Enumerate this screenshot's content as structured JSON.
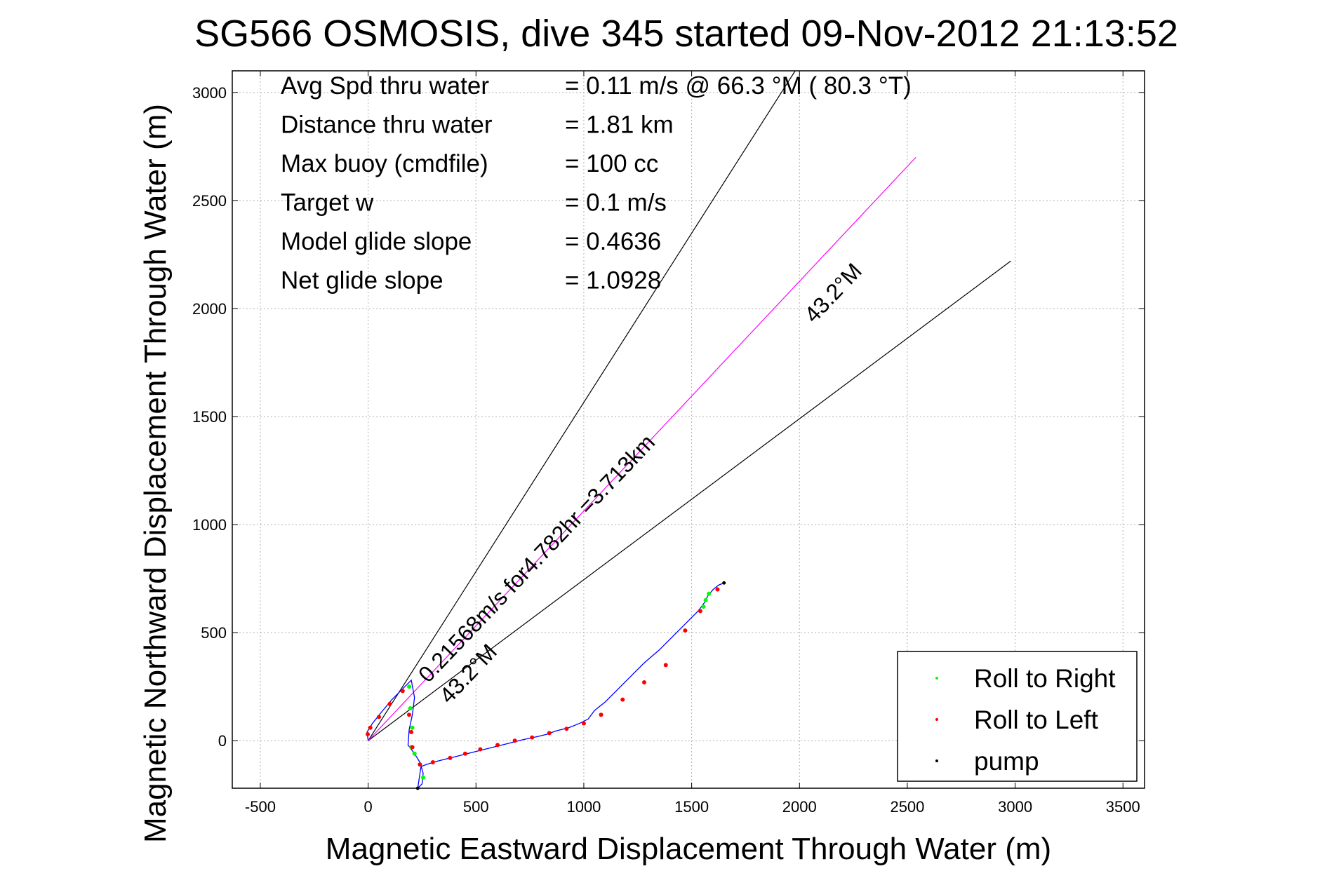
{
  "chart_data": {
    "type": "line",
    "title": "SG566 OSMOSIS, dive 345 started 09-Nov-2012 21:13:52",
    "xlabel": "Magnetic Eastward Displacement Through Water (m)",
    "ylabel": "Magnetic Northward Displacement Through Water (m)",
    "xlim": [
      -630,
      3600
    ],
    "ylim": [
      -220,
      3100
    ],
    "xticks": [
      -500,
      0,
      500,
      1000,
      1500,
      2000,
      2500,
      3000,
      3500
    ],
    "yticks": [
      0,
      500,
      1000,
      1500,
      2000,
      2500,
      3000
    ],
    "grid": true,
    "info_lines": [
      {
        "label": "Avg Spd thru water",
        "value": "=  0.11 m/s @  66.3 °M ( 80.3 °T)"
      },
      {
        "label": "Distance thru water",
        "value": "=  1.81 km"
      },
      {
        "label": "Max buoy (cmdfile)",
        "value": "= 100 cc"
      },
      {
        "label": "Target w",
        "value": "= 0.1 m/s"
      },
      {
        "label": "Model glide slope",
        "value": "= 0.4636"
      },
      {
        "label": "Net glide slope",
        "value": "= 1.0928"
      }
    ],
    "annotations": {
      "current_text": "0.21568m/s for4.782hr =3.713km",
      "heading_text_near": "43.2°M",
      "heading_text_far": "43.2°M"
    },
    "guide_lines": [
      {
        "name": "cone-left",
        "x": [
          0,
          1980
        ],
        "y": [
          0,
          3100
        ],
        "color": "#000000"
      },
      {
        "name": "cone-right",
        "x": [
          0,
          2980
        ],
        "y": [
          0,
          2220
        ],
        "color": "#000000"
      },
      {
        "name": "current-vector",
        "x": [
          0,
          2540
        ],
        "y": [
          0,
          2700
        ],
        "color": "#ff00ff"
      }
    ],
    "series": [
      {
        "name": "track",
        "color": "#0000ff",
        "x": [
          0,
          -5,
          20,
          60,
          110,
          170,
          200,
          215,
          205,
          190,
          185,
          200,
          215,
          240,
          255,
          250,
          230,
          245,
          270,
          320,
          400,
          480,
          560,
          640,
          720,
          790,
          830,
          870,
          930,
          980,
          1020,
          1050,
          1100,
          1150,
          1210,
          1280,
          1350,
          1410,
          1470,
          1530,
          1560,
          1575,
          1600,
          1625,
          1650
        ],
        "y": [
          0,
          40,
          80,
          130,
          190,
          250,
          280,
          200,
          120,
          50,
          -20,
          -40,
          -60,
          -100,
          -150,
          -200,
          -220,
          -120,
          -110,
          -95,
          -75,
          -55,
          -35,
          -15,
          5,
          20,
          30,
          45,
          60,
          80,
          100,
          140,
          180,
          230,
          290,
          360,
          420,
          480,
          540,
          600,
          640,
          670,
          700,
          720,
          730
        ]
      },
      {
        "name": "Roll to Right",
        "color": "#00ff00",
        "x": [
          190,
          195,
          205,
          200,
          215,
          240,
          255,
          1555,
          1565,
          1580
        ],
        "y": [
          250,
          150,
          60,
          -30,
          -60,
          -110,
          -170,
          620,
          650,
          680
        ]
      },
      {
        "name": "Roll to Left",
        "color": "#ff0000",
        "x": [
          -2,
          10,
          50,
          100,
          160,
          190,
          200,
          205,
          240,
          300,
          380,
          450,
          520,
          600,
          680,
          760,
          840,
          920,
          1000,
          1080,
          1180,
          1280,
          1380,
          1470,
          1540,
          1620
        ],
        "y": [
          30,
          60,
          110,
          170,
          230,
          120,
          40,
          -30,
          -110,
          -100,
          -80,
          -60,
          -40,
          -20,
          0,
          15,
          35,
          55,
          80,
          120,
          190,
          270,
          350,
          510,
          600,
          700
        ]
      },
      {
        "name": "pump",
        "color": "#000000",
        "x": [
          230,
          1650
        ],
        "y": [
          -220,
          730
        ]
      }
    ],
    "legend": {
      "placement": "bottom-right",
      "entries": [
        {
          "label": "Roll to Right",
          "color": "#00ff00"
        },
        {
          "label": "Roll to Left",
          "color": "#ff0000"
        },
        {
          "label": "pump",
          "color": "#000000"
        }
      ]
    }
  }
}
